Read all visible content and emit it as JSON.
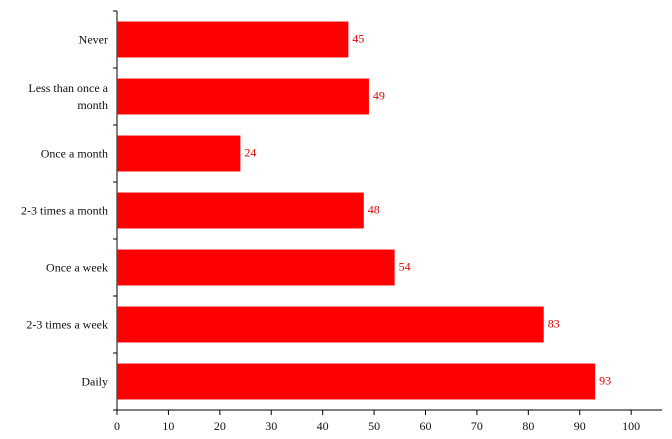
{
  "chart_data": {
    "type": "bar",
    "orientation": "horizontal",
    "categories": [
      "Never",
      "Less than once a month",
      "Once a month",
      "2-3 times a month",
      "Once a week",
      "2-3 times a week",
      "Daily"
    ],
    "values": [
      45,
      49,
      24,
      48,
      54,
      83,
      93
    ],
    "color": "#ff0000",
    "label_color": "#e00000",
    "xlim": [
      0,
      106
    ],
    "xticks": [
      0,
      10,
      20,
      30,
      40,
      50,
      60,
      70,
      80,
      90,
      100
    ],
    "grid": false
  }
}
